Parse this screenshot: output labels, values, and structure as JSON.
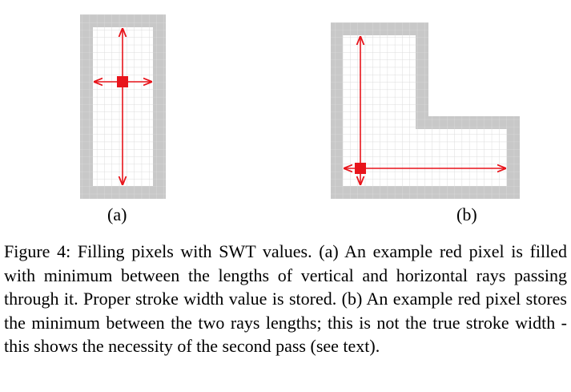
{
  "figure": {
    "panel_a_label": "(a)",
    "panel_b_label": "(b)",
    "caption": "Figure 4: Filling pixels with SWT values. (a) An example red pixel is filled with minimum between the lengths of vertical and horizontal rays passing through it. Proper stroke width value is stored. (b) An example red pixel stores the minimum between the two rays lengths; this is not the true stroke width - this shows the necessity of the second pass (see text).",
    "colors": {
      "border_pixel": "#c8c8c8",
      "grid_line": "#dcdcdc",
      "ray": "#e8141b",
      "pixel": "#e8141b"
    }
  }
}
